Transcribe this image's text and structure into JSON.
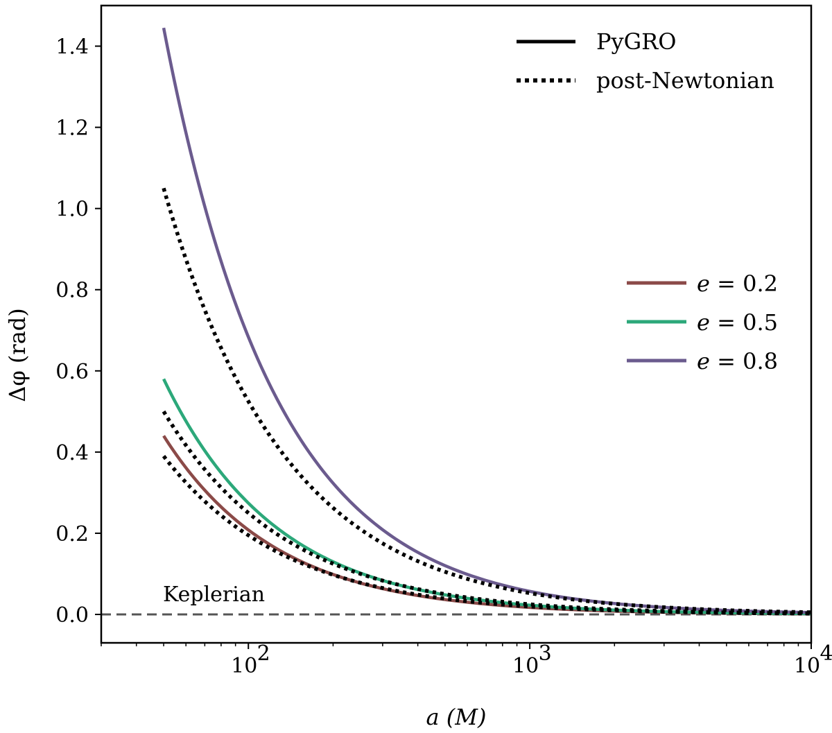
{
  "chart_data": {
    "type": "line",
    "title": "",
    "xlabel": "a (M)",
    "ylabel": "Δφ (rad)",
    "xscale": "log",
    "xlim": [
      30,
      10000
    ],
    "ylim": [
      -0.07,
      1.5
    ],
    "yticks": [
      {
        "value": 0.0,
        "label": "0.0"
      },
      {
        "value": 0.2,
        "label": "0.2"
      },
      {
        "value": 0.4,
        "label": "0.4"
      },
      {
        "value": 0.6,
        "label": "0.6"
      },
      {
        "value": 0.8,
        "label": "0.8"
      },
      {
        "value": 1.0,
        "label": "1.0"
      },
      {
        "value": 1.2,
        "label": "1.2"
      },
      {
        "value": 1.4,
        "label": "1.4"
      }
    ],
    "xticks": [
      {
        "value": 100,
        "base": "10",
        "exp": "2"
      },
      {
        "value": 1000,
        "base": "10",
        "exp": "3"
      },
      {
        "value": 10000,
        "base": "10",
        "exp": "4"
      }
    ],
    "a_range": [
      50,
      10000
    ],
    "series": [
      {
        "name": "e = 0.2",
        "e_value": "0.2",
        "color": "#8b4a48",
        "pygro_at_50": 0.44,
        "pn_at_50": 0.39
      },
      {
        "name": "e = 0.5",
        "e_value": "0.5",
        "color": "#2ca87a",
        "pygro_at_50": 0.58,
        "pn_at_50": 0.5
      },
      {
        "name": "e = 0.8",
        "e_value": "0.8",
        "color": "#6b5b8e",
        "pygro_at_50": 1.445,
        "pn_at_50": 1.05
      }
    ],
    "legend_styles": [
      {
        "label": "PyGRO",
        "style": "solid"
      },
      {
        "label": "post-Newtonian",
        "style": "dotted"
      }
    ],
    "legend_eccentricity_prefix": "e",
    "reference_line": {
      "label": "Keplerian",
      "value": 0.0,
      "style": "dashed",
      "color": "#555555"
    }
  }
}
